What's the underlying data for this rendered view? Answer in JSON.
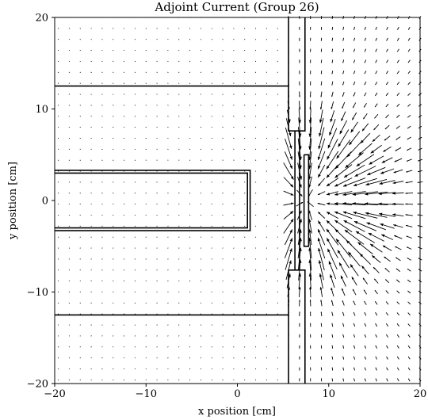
{
  "chart_data": {
    "type": "quiver",
    "title": "Adjoint Current (Group 26)",
    "xlabel": "x position [cm]",
    "ylabel": "y position [cm]",
    "xlim": [
      -20,
      20
    ],
    "ylim": [
      -20,
      20
    ],
    "xticks": [
      -20,
      -10,
      0,
      10,
      20
    ],
    "yticks": [
      -20,
      -10,
      0,
      10,
      20
    ],
    "xtick_labels": [
      "−20",
      "−10",
      "0",
      "10",
      "20"
    ],
    "ytick_labels": [
      "−20",
      "−10",
      "0",
      "10",
      "20"
    ],
    "grid": false,
    "arrow_grid_spacing_cm": 1.2,
    "source_point": [
      7.5,
      0
    ],
    "focus_point": [
      14,
      0
    ],
    "boundaries": [
      {
        "name": "upper-block-edge",
        "points": [
          [
            -20,
            12.5
          ],
          [
            5.6,
            12.5
          ],
          [
            5.6,
            7.6
          ],
          [
            7.4,
            7.6
          ],
          [
            7.4,
            20
          ]
        ]
      },
      {
        "name": "upper-block-left-wall",
        "points": [
          [
            5.6,
            12.5
          ],
          [
            5.6,
            20
          ]
        ]
      },
      {
        "name": "lower-block-edge",
        "points": [
          [
            -20,
            -12.5
          ],
          [
            5.6,
            -12.5
          ],
          [
            5.6,
            -7.6
          ],
          [
            7.4,
            -7.6
          ],
          [
            7.4,
            -20
          ]
        ]
      },
      {
        "name": "lower-block-left-wall",
        "points": [
          [
            5.6,
            -12.5
          ],
          [
            5.6,
            -20
          ]
        ]
      },
      {
        "name": "inner-channel-outer",
        "points": [
          [
            -20,
            3.3
          ],
          [
            1.4,
            3.3
          ],
          [
            1.4,
            -3.3
          ],
          [
            -20,
            -3.3
          ]
        ]
      },
      {
        "name": "inner-channel-inner",
        "points": [
          [
            -20,
            3.0
          ],
          [
            1.1,
            3.0
          ],
          [
            1.1,
            -3.0
          ],
          [
            -20,
            -3.0
          ]
        ]
      },
      {
        "name": "detector-slot-outer",
        "points": [
          [
            7.3,
            5.0
          ],
          [
            7.8,
            5.0
          ],
          [
            7.8,
            -5.0
          ],
          [
            7.3,
            -5.0
          ],
          [
            7.3,
            5.0
          ]
        ]
      },
      {
        "name": "slot-wall-left",
        "points": [
          [
            6.3,
            7.6
          ],
          [
            6.3,
            -7.6
          ]
        ]
      },
      {
        "name": "slot-wall-right",
        "points": [
          [
            6.8,
            7.6
          ],
          [
            6.8,
            -7.6
          ]
        ]
      }
    ]
  }
}
